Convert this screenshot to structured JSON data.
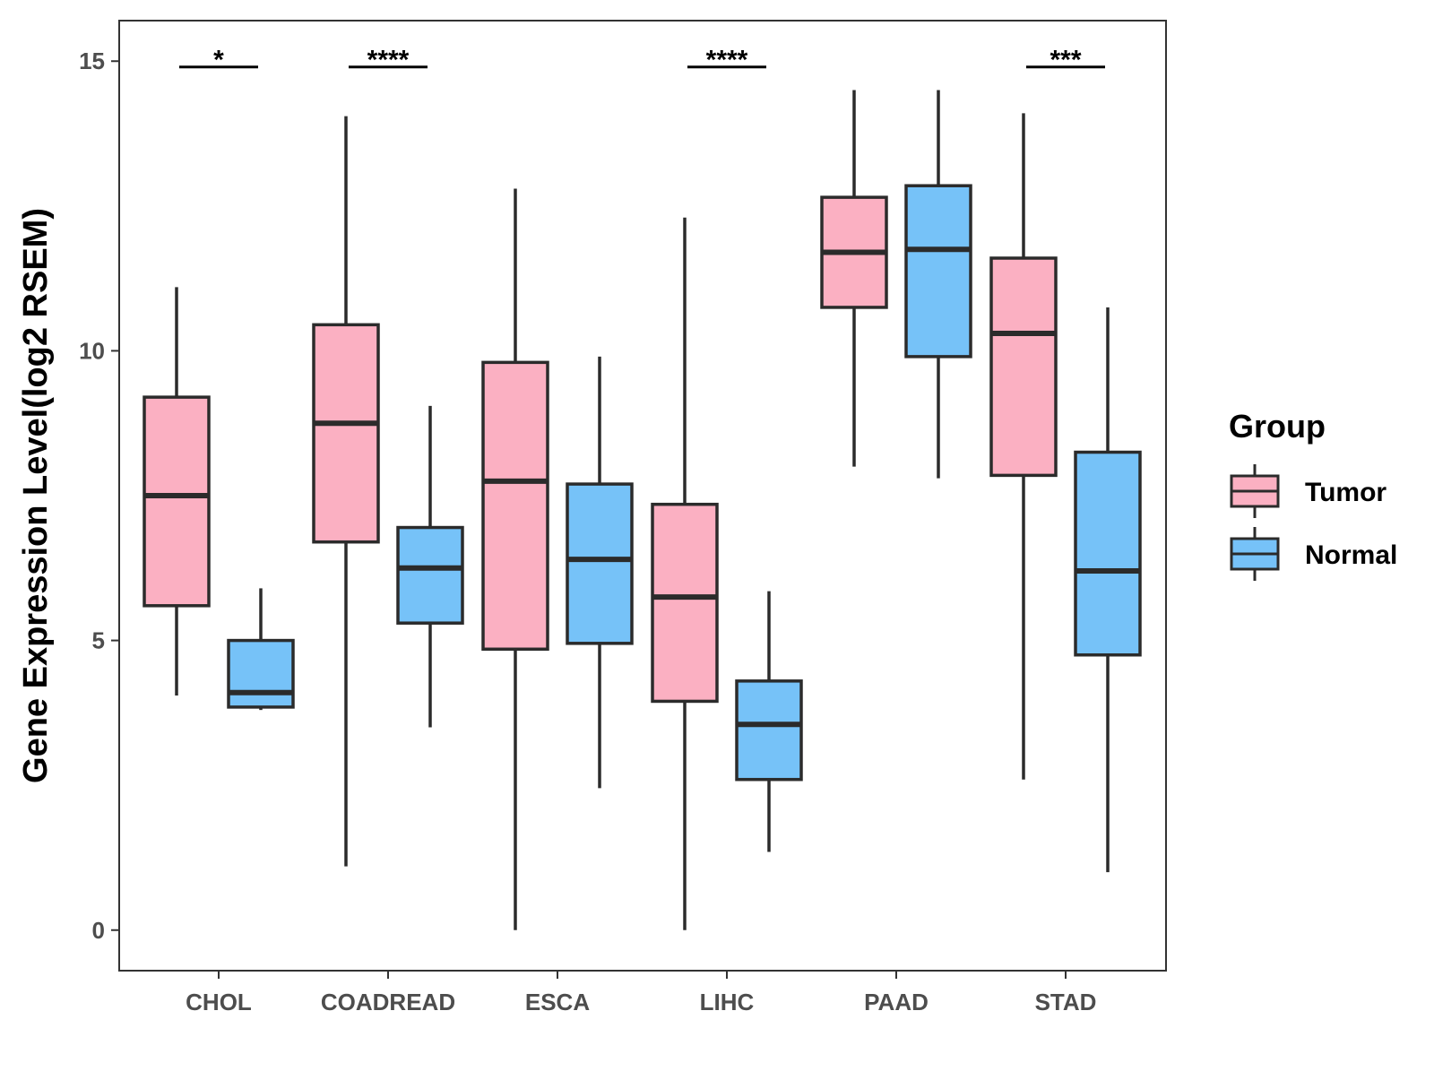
{
  "chart_data": {
    "type": "boxplot",
    "ylabel": "Gene Expression Level(log2 RSEM)",
    "xlabel": "",
    "ylim": [
      -0.7,
      15.7
    ],
    "yticks": [
      0,
      5,
      10,
      15
    ],
    "ytick_labels": [
      "0",
      "5",
      "10",
      "15"
    ],
    "categories": [
      "CHOL",
      "COADREAD",
      "ESCA",
      "LIHC",
      "PAAD",
      "STAD"
    ],
    "legend": {
      "title": "Group",
      "position": "right",
      "entries": [
        {
          "name": "Tumor",
          "color": "#FBB0C2"
        },
        {
          "name": "Normal",
          "color": "#76C2F8"
        }
      ]
    },
    "series": [
      {
        "name": "Tumor",
        "color": "#FBB0C2",
        "boxes": [
          {
            "whisker_low": 4.05,
            "q1": 5.6,
            "median": 7.5,
            "q3": 9.2,
            "whisker_high": 11.1
          },
          {
            "whisker_low": 1.1,
            "q1": 6.7,
            "median": 8.75,
            "q3": 10.45,
            "whisker_high": 14.05
          },
          {
            "whisker_low": 0.0,
            "q1": 4.85,
            "median": 7.75,
            "q3": 9.8,
            "whisker_high": 12.8
          },
          {
            "whisker_low": 0.0,
            "q1": 3.95,
            "median": 5.75,
            "q3": 7.35,
            "whisker_high": 12.3
          },
          {
            "whisker_low": 8.0,
            "q1": 10.75,
            "median": 11.7,
            "q3": 12.65,
            "whisker_high": 14.5
          },
          {
            "whisker_low": 2.6,
            "q1": 7.85,
            "median": 10.3,
            "q3": 11.6,
            "whisker_high": 14.1
          }
        ]
      },
      {
        "name": "Normal",
        "color": "#76C2F8",
        "boxes": [
          {
            "whisker_low": 3.8,
            "q1": 3.85,
            "median": 4.1,
            "q3": 5.0,
            "whisker_high": 5.9
          },
          {
            "whisker_low": 3.5,
            "q1": 5.3,
            "median": 6.25,
            "q3": 6.95,
            "whisker_high": 9.05
          },
          {
            "whisker_low": 2.45,
            "q1": 4.95,
            "median": 6.4,
            "q3": 7.7,
            "whisker_high": 9.9
          },
          {
            "whisker_low": 1.35,
            "q1": 2.6,
            "median": 3.55,
            "q3": 4.3,
            "whisker_high": 5.85
          },
          {
            "whisker_low": 7.8,
            "q1": 9.9,
            "median": 11.75,
            "q3": 12.85,
            "whisker_high": 14.5
          },
          {
            "whisker_low": 1.0,
            "q1": 4.75,
            "median": 6.2,
            "q3": 8.25,
            "whisker_high": 10.75
          }
        ]
      }
    ],
    "significance": [
      {
        "category": "CHOL",
        "label": "*",
        "y": 14.9
      },
      {
        "category": "COADREAD",
        "label": "****",
        "y": 14.9
      },
      {
        "category": "LIHC",
        "label": "****",
        "y": 14.9
      },
      {
        "category": "STAD",
        "label": "***",
        "y": 14.9
      }
    ]
  }
}
